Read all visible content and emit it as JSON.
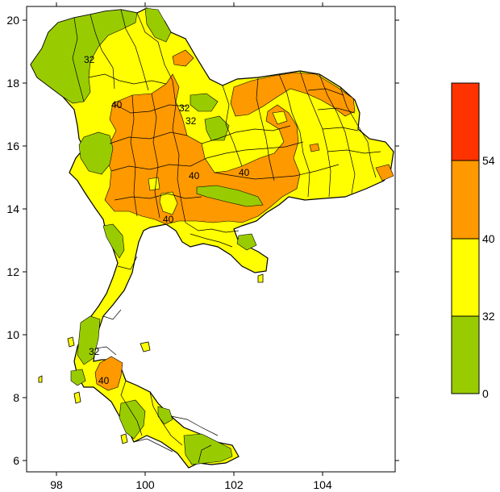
{
  "axes": {
    "x_ticks": [
      "98",
      "100",
      "102",
      "104"
    ],
    "y_ticks": [
      "20",
      "18",
      "16",
      "14",
      "12",
      "10",
      "8",
      "6"
    ]
  },
  "colors": {
    "green": "#99cc00",
    "yellow": "#ffff00",
    "orange": "#ff9900",
    "red": "#ff3300",
    "border": "#000000"
  },
  "legend": {
    "labels": [
      "54",
      "40",
      "32",
      "0"
    ]
  },
  "contour_labels": [
    "32",
    "40",
    "32",
    "40",
    "32",
    "40",
    "40",
    "32",
    "40"
  ]
}
